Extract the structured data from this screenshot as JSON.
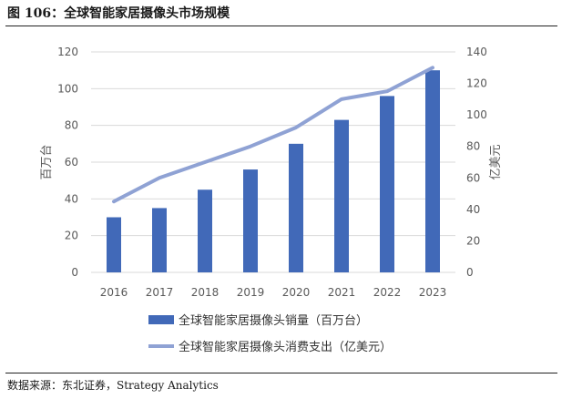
{
  "figure": {
    "title": "图 106：全球智能家居摄像头市场规模",
    "source": "数据来源：东北证券，Strategy Analytics"
  },
  "chart_data": {
    "type": "bar+line",
    "categories": [
      "2016",
      "2017",
      "2018",
      "2019",
      "2020",
      "2021",
      "2022",
      "2023"
    ],
    "series": [
      {
        "name": "全球智能家居摄像头销量（百万台）",
        "type": "bar",
        "axis": "left",
        "color": "#4169b8",
        "values": [
          30,
          35,
          45,
          56,
          70,
          83,
          96,
          110
        ]
      },
      {
        "name": "全球智能家居摄像头消费支出（亿美元）",
        "type": "line",
        "axis": "right",
        "color": "#8fa2d4",
        "values": [
          45,
          60,
          70,
          80,
          92,
          110,
          115,
          130
        ]
      }
    ],
    "left_axis": {
      "label": "百万台",
      "min": 0,
      "max": 120,
      "ticks": [
        0,
        20,
        40,
        60,
        80,
        100,
        120
      ]
    },
    "right_axis": {
      "label": "亿美元",
      "min": 0,
      "max": 140,
      "ticks": [
        0,
        20,
        40,
        60,
        80,
        100,
        120,
        140
      ]
    },
    "grid": true,
    "legend_position": "bottom"
  }
}
